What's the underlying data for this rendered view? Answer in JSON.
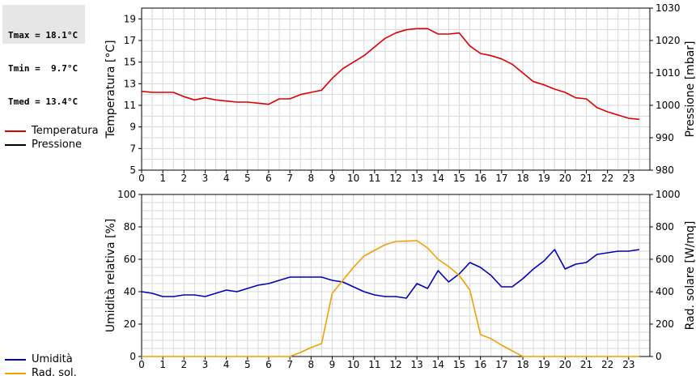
{
  "stats": {
    "lines": [
      "Tmax = 18.1°C",
      "Tmin =  9.7°C",
      "Tmed = 13.4°C"
    ]
  },
  "legend_top": [
    {
      "label": "Temperatura",
      "color": "#dd0000"
    },
    {
      "label": "Pressione",
      "color": "#000000"
    }
  ],
  "legend_bottom": [
    {
      "label": "Umidità",
      "color": "#0000bb"
    },
    {
      "label": "Rad. sol.",
      "color": "#f0a000"
    }
  ],
  "chart_data": [
    {
      "type": "line",
      "x_ticks": [
        "0",
        "1",
        "2",
        "3",
        "4",
        "5",
        "6",
        "7",
        "8",
        "9",
        "10",
        "11",
        "12",
        "13",
        "14",
        "15",
        "16",
        "17",
        "18",
        "19",
        "20",
        "21",
        "22",
        "23"
      ],
      "xlim": [
        0,
        24
      ],
      "ylabel": "Temperatura [°C]",
      "y_ticks": [
        "5",
        "7",
        "9",
        "11",
        "13",
        "15",
        "17",
        "19"
      ],
      "ylim": [
        5,
        20
      ],
      "ylabel_right": "Pressione [mbar]",
      "y_ticks_right": [
        "980",
        "990",
        "1000",
        "1010",
        "1020",
        "1030"
      ],
      "ylim_right": [
        980,
        1030
      ],
      "grid": true,
      "series": [
        {
          "name": "Temperatura",
          "color": "#dd0000",
          "axis": "left",
          "x": [
            0,
            0.5,
            1,
            1.5,
            2,
            2.5,
            3,
            3.5,
            4,
            4.5,
            5,
            5.5,
            6,
            6.5,
            7,
            7.5,
            8,
            8.5,
            9,
            9.5,
            10,
            10.5,
            11,
            11.5,
            12,
            12.5,
            13,
            13.5,
            14,
            14.5,
            15,
            15.5,
            16,
            16.5,
            17,
            17.5,
            18,
            18.5,
            19,
            19.5,
            20,
            20.5,
            21,
            21.5,
            22,
            22.5,
            23,
            23.5
          ],
          "values": [
            12.3,
            12.2,
            12.2,
            12.2,
            11.8,
            11.5,
            11.7,
            11.5,
            11.4,
            11.3,
            11.3,
            11.2,
            11.1,
            11.6,
            11.6,
            12.0,
            12.2,
            12.4,
            13.5,
            14.4,
            15.0,
            15.6,
            16.4,
            17.2,
            17.7,
            18.0,
            18.1,
            18.1,
            17.6,
            17.6,
            17.7,
            16.5,
            15.8,
            15.6,
            15.3,
            14.8,
            14.0,
            13.2,
            12.9,
            12.5,
            12.2,
            11.7,
            11.6,
            10.8,
            10.4,
            10.1,
            9.8,
            9.7
          ]
        }
      ]
    },
    {
      "type": "line",
      "x_ticks": [
        "0",
        "1",
        "2",
        "3",
        "4",
        "5",
        "6",
        "7",
        "8",
        "9",
        "10",
        "11",
        "12",
        "13",
        "14",
        "15",
        "16",
        "17",
        "18",
        "19",
        "20",
        "21",
        "22",
        "23"
      ],
      "xlim": [
        0,
        24
      ],
      "ylabel": "Umidità relativa [%]",
      "y_ticks": [
        "0",
        "20",
        "40",
        "60",
        "80",
        "100"
      ],
      "ylim": [
        0,
        100
      ],
      "ylabel_right": "Rad. solare [W/mq]",
      "y_ticks_right": [
        "0",
        "200",
        "400",
        "600",
        "800",
        "1000"
      ],
      "ylim_right": [
        0,
        1000
      ],
      "grid": true,
      "series": [
        {
          "name": "Umidità",
          "color": "#0000bb",
          "axis": "left",
          "x": [
            0,
            0.5,
            1,
            1.5,
            2,
            2.5,
            3,
            3.5,
            4,
            4.5,
            5,
            5.5,
            6,
            6.5,
            7,
            7.5,
            8,
            8.5,
            9,
            9.5,
            10,
            10.5,
            11,
            11.5,
            12,
            12.5,
            13,
            13.5,
            14,
            14.5,
            15,
            15.5,
            16,
            16.5,
            17,
            17.5,
            18,
            18.5,
            19,
            19.5,
            20,
            20.5,
            21,
            21.5,
            22,
            22.5,
            23,
            23.5
          ],
          "values": [
            40,
            39,
            37,
            37,
            38,
            38,
            37,
            39,
            41,
            40,
            42,
            44,
            45,
            47,
            49,
            49,
            49,
            49,
            47,
            46,
            43,
            40,
            38,
            37,
            37,
            36,
            45,
            42,
            53,
            46,
            51,
            58,
            55,
            50,
            43,
            43,
            48,
            54,
            59,
            66,
            54,
            57,
            58,
            63,
            64,
            65,
            65,
            66
          ]
        },
        {
          "name": "Rad. sol.",
          "color": "#f0a000",
          "axis": "right",
          "x": [
            0,
            1,
            2,
            3,
            4,
            5,
            6,
            7,
            7.5,
            8,
            8.5,
            9,
            9.5,
            10,
            10.5,
            11,
            11.5,
            12,
            12.5,
            13,
            13.5,
            14,
            14.5,
            15,
            15.5,
            16,
            16.5,
            17,
            17.5,
            18,
            18.5,
            19,
            20,
            21,
            22,
            23,
            23.5
          ],
          "values": [
            0,
            0,
            0,
            0,
            0,
            0,
            0,
            0,
            25,
            55,
            80,
            390,
            470,
            550,
            620,
            655,
            690,
            710,
            712,
            715,
            670,
            600,
            555,
            500,
            410,
            135,
            110,
            70,
            35,
            0,
            0,
            0,
            0,
            0,
            0,
            0,
            0
          ]
        }
      ]
    }
  ]
}
